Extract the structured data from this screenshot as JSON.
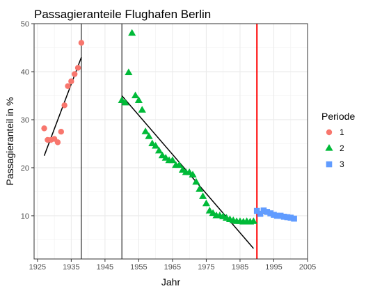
{
  "chart_data": {
    "type": "scatter",
    "title": "Passagieranteile Flughafen Berlin",
    "xlabel": "Jahr",
    "ylabel": "Passagieranteil in %",
    "xlim": [
      1924,
      2005
    ],
    "ylim": [
      1,
      50
    ],
    "x_ticks": [
      1925,
      1935,
      1945,
      1955,
      1965,
      1975,
      1985,
      1995,
      2005
    ],
    "y_ticks": [
      10,
      20,
      30,
      40,
      50
    ],
    "grid": true,
    "legend": {
      "title": "Periode",
      "position": "right"
    },
    "series": [
      {
        "name": "1",
        "shape": "circle",
        "color": "#F8766D",
        "points": [
          [
            1927,
            28.2
          ],
          [
            1928,
            25.8
          ],
          [
            1929,
            25.8
          ],
          [
            1930,
            26.0
          ],
          [
            1931,
            25.3
          ],
          [
            1932,
            27.5
          ],
          [
            1933,
            33.0
          ],
          [
            1934,
            37.0
          ],
          [
            1935,
            38.0
          ],
          [
            1936,
            39.5
          ],
          [
            1937,
            40.8
          ],
          [
            1938,
            46.0
          ]
        ]
      },
      {
        "name": "2",
        "shape": "triangle",
        "color": "#00BA38",
        "points": [
          [
            1950,
            34.0
          ],
          [
            1951,
            33.5
          ],
          [
            1952,
            39.8
          ],
          [
            1953,
            48.0
          ],
          [
            1954,
            35.0
          ],
          [
            1955,
            34.0
          ],
          [
            1956,
            32.0
          ],
          [
            1957,
            27.5
          ],
          [
            1958,
            26.5
          ],
          [
            1959,
            25.0
          ],
          [
            1960,
            24.5
          ],
          [
            1961,
            23.5
          ],
          [
            1962,
            22.5
          ],
          [
            1963,
            22.0
          ],
          [
            1964,
            21.5
          ],
          [
            1965,
            21.5
          ],
          [
            1966,
            20.5
          ],
          [
            1967,
            20.5
          ],
          [
            1968,
            19.5
          ],
          [
            1969,
            19.0
          ],
          [
            1970,
            19.0
          ],
          [
            1971,
            18.5
          ],
          [
            1972,
            17.0
          ],
          [
            1973,
            15.5
          ],
          [
            1974,
            14.0
          ],
          [
            1975,
            12.5
          ],
          [
            1976,
            11.0
          ],
          [
            1977,
            10.5
          ],
          [
            1978,
            10.0
          ],
          [
            1979,
            10.0
          ],
          [
            1980,
            9.8
          ],
          [
            1981,
            9.5
          ],
          [
            1982,
            9.2
          ],
          [
            1983,
            9.0
          ],
          [
            1984,
            8.8
          ],
          [
            1985,
            8.8
          ],
          [
            1986,
            8.7
          ],
          [
            1987,
            8.8
          ],
          [
            1988,
            8.7
          ],
          [
            1989,
            8.8
          ]
        ]
      },
      {
        "name": "3",
        "shape": "square",
        "color": "#619CFF",
        "points": [
          [
            1990,
            11.0
          ],
          [
            1991,
            10.4
          ],
          [
            1992,
            11.1
          ],
          [
            1993,
            10.8
          ],
          [
            1994,
            10.5
          ],
          [
            1995,
            10.2
          ],
          [
            1996,
            10.0
          ],
          [
            1997,
            10.0
          ],
          [
            1998,
            9.8
          ],
          [
            1999,
            9.7
          ],
          [
            2000,
            9.6
          ],
          [
            2001,
            9.4
          ]
        ]
      }
    ],
    "trend_lines": [
      {
        "series": "1",
        "x": [
          1927,
          1938
        ],
        "y": [
          22.5,
          43.0
        ],
        "color": "#000000"
      },
      {
        "series": "2",
        "x": [
          1950,
          1989
        ],
        "y": [
          35.0,
          3.2
        ],
        "color": "#000000"
      },
      {
        "series": "3",
        "x": [
          1990,
          2001
        ],
        "y": [
          10.9,
          9.3
        ],
        "color": "#000000"
      }
    ],
    "vertical_lines": [
      {
        "x": 1938,
        "color": "#000000"
      },
      {
        "x": 1950,
        "color": "#000000"
      },
      {
        "x": 1990,
        "color": "#FF0000"
      }
    ]
  }
}
